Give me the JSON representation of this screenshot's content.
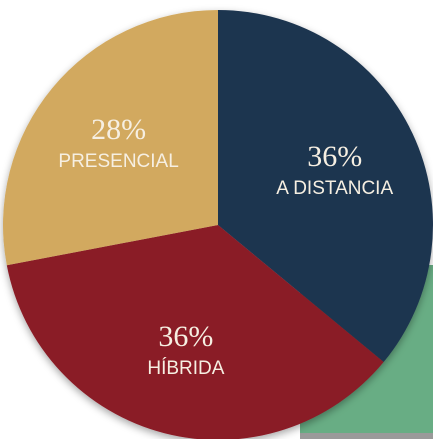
{
  "chart_data": {
    "type": "pie",
    "categories": [
      "A DISTANCIA",
      "HÍBRIDA",
      "PRESENCIAL"
    ],
    "values": [
      36,
      36,
      28
    ],
    "value_labels": [
      "36%",
      "36%",
      "28%"
    ],
    "colors": [
      "#1e3550",
      "#8a1a25",
      "#d2a95f"
    ]
  }
}
